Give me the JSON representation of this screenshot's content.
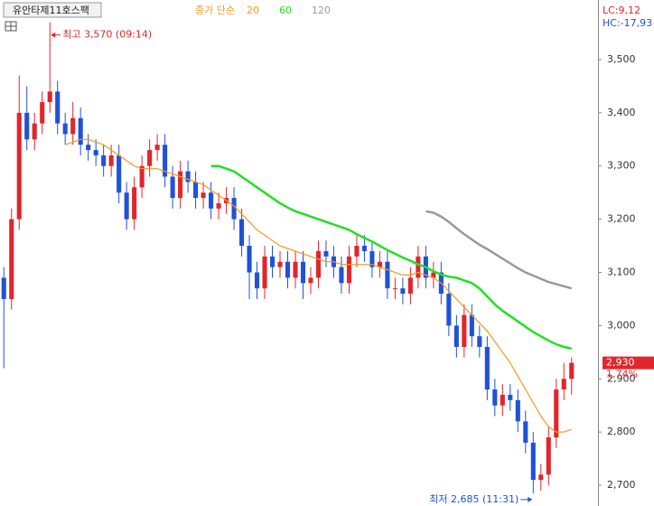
{
  "chart_data": {
    "type": "candlestick",
    "title": "유안타제11호스팩",
    "legend_labels": [
      "종가 단순"
    ],
    "lc_label": "LC:9,12",
    "hc_label": "HC:-17,93",
    "open": [
      3090,
      3050,
      3200,
      3400,
      3350,
      3380,
      3420,
      3440,
      3380,
      3360,
      3390,
      3340,
      3330,
      3320,
      3300,
      3320,
      3250,
      3200,
      3260,
      3300,
      3330,
      3340,
      3280,
      3240,
      3290,
      3270,
      3240,
      3250,
      3220,
      3230,
      3240,
      3200,
      3150,
      3100,
      3070,
      3130,
      3110,
      3120,
      3090,
      3120,
      3080,
      3090,
      3140,
      3130,
      3110,
      3080,
      3130,
      3150,
      3140,
      3110,
      3120,
      3070,
      3070,
      3060,
      3090,
      3130,
      3090,
      3100,
      3060,
      3000,
      2960,
      3020,
      2980,
      2960,
      2880,
      2850,
      2870,
      2860,
      2820,
      2780,
      2710,
      2720,
      2790,
      2880,
      2900
    ],
    "high": [
      3110,
      3220,
      3470,
      3450,
      3400,
      3440,
      3570,
      3460,
      3400,
      3420,
      3410,
      3360,
      3350,
      3340,
      3340,
      3340,
      3270,
      3280,
      3320,
      3350,
      3360,
      3360,
      3300,
      3310,
      3310,
      3290,
      3270,
      3270,
      3250,
      3260,
      3260,
      3220,
      3170,
      3120,
      3150,
      3150,
      3140,
      3140,
      3140,
      3140,
      3110,
      3160,
      3160,
      3150,
      3130,
      3150,
      3170,
      3170,
      3160,
      3140,
      3140,
      3090,
      3090,
      3110,
      3150,
      3150,
      3120,
      3120,
      3080,
      3020,
      3040,
      3040,
      3000,
      2980,
      2900,
      2890,
      2890,
      2880,
      2840,
      2800,
      2740,
      2810,
      2900,
      2930,
      2940
    ],
    "low": [
      2920,
      3030,
      3180,
      3330,
      3330,
      3360,
      3400,
      3360,
      3340,
      3340,
      3320,
      3310,
      3300,
      3280,
      3280,
      3230,
      3180,
      3180,
      3240,
      3280,
      3310,
      3260,
      3220,
      3220,
      3250,
      3220,
      3220,
      3200,
      3200,
      3210,
      3180,
      3130,
      3050,
      3050,
      3050,
      3090,
      3090,
      3070,
      3070,
      3050,
      3060,
      3070,
      3110,
      3090,
      3060,
      3060,
      3110,
      3120,
      3090,
      3090,
      3050,
      3050,
      3040,
      3040,
      3070,
      3070,
      3070,
      3040,
      2980,
      2940,
      2940,
      2960,
      2940,
      2860,
      2830,
      2830,
      2840,
      2800,
      2760,
      2685,
      2690,
      2700,
      2770,
      2860,
      2870
    ],
    "close": [
      3050,
      3200,
      3400,
      3350,
      3380,
      3420,
      3440,
      3380,
      3360,
      3390,
      3340,
      3330,
      3320,
      3300,
      3320,
      3250,
      3200,
      3260,
      3300,
      3330,
      3340,
      3280,
      3240,
      3290,
      3270,
      3240,
      3250,
      3220,
      3230,
      3240,
      3200,
      3150,
      3100,
      3070,
      3130,
      3110,
      3120,
      3090,
      3120,
      3080,
      3090,
      3140,
      3130,
      3110,
      3080,
      3130,
      3150,
      3140,
      3110,
      3120,
      3070,
      3070,
      3060,
      3090,
      3130,
      3090,
      3100,
      3060,
      3000,
      2960,
      3020,
      2980,
      2960,
      2880,
      2850,
      2870,
      2860,
      2820,
      2780,
      2710,
      2720,
      2790,
      2880,
      2900,
      2930
    ],
    "up_color": "#e0262b",
    "down_color": "#1f52d8",
    "series": [
      {
        "name": "20",
        "color": "#f39a1e",
        "values": [
          null,
          null,
          null,
          null,
          null,
          null,
          null,
          null,
          3340,
          3345,
          3350,
          3350,
          3345,
          3340,
          3330,
          3320,
          3310,
          3300,
          3295,
          3295,
          3295,
          3290,
          3285,
          3280,
          3275,
          3270,
          3265,
          3255,
          3245,
          3235,
          3225,
          3210,
          3195,
          3180,
          3170,
          3160,
          3150,
          3145,
          3140,
          3135,
          3130,
          3125,
          3120,
          3120,
          3115,
          3115,
          3115,
          3115,
          3115,
          3110,
          3105,
          3100,
          3095,
          3095,
          3100,
          3095,
          3090,
          3080,
          3065,
          3050,
          3035,
          3020,
          3005,
          2990,
          2970,
          2950,
          2930,
          2905,
          2880,
          2855,
          2830,
          2810,
          2800,
          2800,
          2805
        ]
      },
      {
        "name": "60",
        "color": "#22e022",
        "values": [
          null,
          null,
          null,
          null,
          null,
          null,
          null,
          null,
          null,
          null,
          null,
          null,
          null,
          null,
          null,
          null,
          null,
          null,
          null,
          null,
          null,
          null,
          null,
          null,
          null,
          null,
          null,
          3300,
          3300,
          3295,
          3290,
          3280,
          3270,
          3260,
          3250,
          3240,
          3230,
          3222,
          3215,
          3210,
          3205,
          3200,
          3195,
          3190,
          3185,
          3180,
          3172,
          3165,
          3158,
          3150,
          3142,
          3135,
          3128,
          3122,
          3115,
          3110,
          3102,
          3096,
          3092,
          3090,
          3085,
          3080,
          3070,
          3055,
          3040,
          3028,
          3018,
          3008,
          2998,
          2988,
          2980,
          2972,
          2965,
          2960,
          2957
        ]
      },
      {
        "name": "120",
        "color": "#9a9a9a",
        "values": [
          null,
          null,
          null,
          null,
          null,
          null,
          null,
          null,
          null,
          null,
          null,
          null,
          null,
          null,
          null,
          null,
          null,
          null,
          null,
          null,
          null,
          null,
          null,
          null,
          null,
          null,
          null,
          null,
          null,
          null,
          null,
          null,
          null,
          null,
          null,
          null,
          null,
          null,
          null,
          null,
          null,
          null,
          null,
          null,
          null,
          null,
          null,
          null,
          null,
          null,
          null,
          null,
          null,
          null,
          null,
          3215,
          3212,
          3205,
          3195,
          3183,
          3172,
          3162,
          3152,
          3144,
          3135,
          3126,
          3117,
          3108,
          3100,
          3094,
          3088,
          3082,
          3078,
          3074,
          3070
        ]
      }
    ],
    "high_annotation": "최고 3,570 (09:14)",
    "low_annotation": "최저 2,685 (11:31)",
    "current_price": {
      "value": 2930,
      "label": "2,930"
    },
    "change_label": "1,74%",
    "ylim": [
      2661,
      3612
    ],
    "yticks": [
      {
        "value": 2700,
        "label": "2,700"
      },
      {
        "value": 2800,
        "label": "2,800"
      },
      {
        "value": 2900,
        "label": "2,900"
      },
      {
        "value": 3000,
        "label": "3,000"
      },
      {
        "value": 3100,
        "label": "3,100"
      },
      {
        "value": 3200,
        "label": "3,200"
      },
      {
        "value": 3300,
        "label": "3,300"
      },
      {
        "value": 3400,
        "label": "3,400"
      },
      {
        "value": 3500,
        "label": "3,500"
      }
    ]
  }
}
